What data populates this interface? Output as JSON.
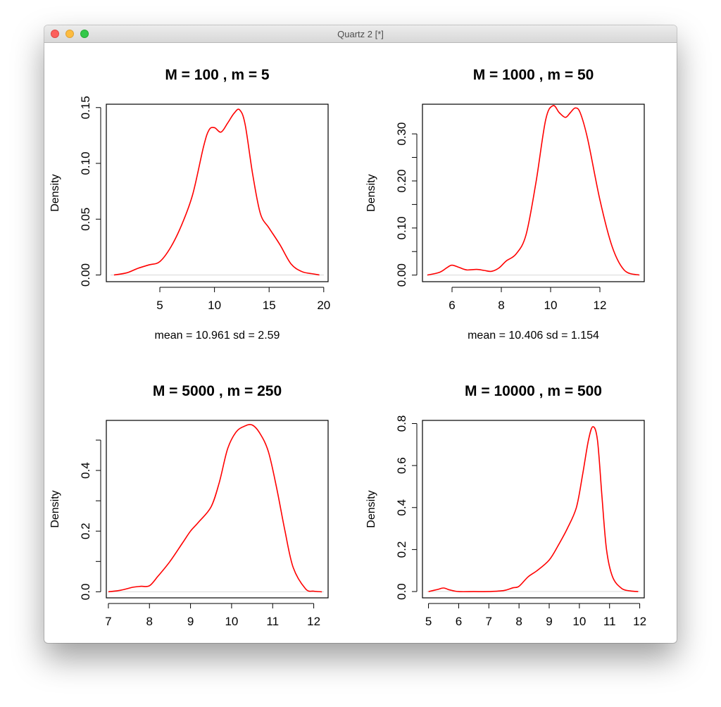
{
  "window": {
    "title": "Quartz 2 [*]"
  },
  "colors": {
    "curve": "#ff0000",
    "axis": "#000000",
    "zero_line": "#d8d8d8"
  },
  "chart_data": [
    {
      "type": "line",
      "title": "M =  100 , m =  5",
      "xlabel": "mean =  10.961 sd =  2.59",
      "ylabel": "Density",
      "xlim": [
        0.1,
        20.4
      ],
      "ylim": [
        -0.006,
        0.153
      ],
      "xticks": [
        5,
        10,
        15,
        20
      ],
      "xtick_labels": [
        "5",
        "10",
        "15",
        "20"
      ],
      "yticks": [
        0.0,
        0.05,
        0.1,
        0.15
      ],
      "ytick_labels": [
        "0.00",
        "0.05",
        "0.10",
        "0.15"
      ],
      "series": [
        {
          "name": "density",
          "x": [
            0.8,
            2.0,
            3.0,
            4.0,
            5.0,
            6.0,
            7.0,
            8.0,
            9.0,
            9.5,
            10.0,
            10.6,
            11.2,
            11.8,
            12.3,
            12.8,
            13.5,
            14.2,
            15.0,
            16.0,
            17.0,
            18.0,
            19.0,
            19.6
          ],
          "y": [
            0.0,
            0.002,
            0.006,
            0.009,
            0.012,
            0.025,
            0.045,
            0.072,
            0.115,
            0.13,
            0.132,
            0.128,
            0.136,
            0.145,
            0.148,
            0.135,
            0.09,
            0.055,
            0.042,
            0.027,
            0.01,
            0.003,
            0.001,
            0.0
          ]
        }
      ]
    },
    {
      "type": "line",
      "title": "M =  1000 , m =  50",
      "xlabel": "mean =  10.406 sd =  1.154",
      "ylabel": "Density",
      "xlim": [
        4.8,
        13.8
      ],
      "ylim": [
        -0.014,
        0.363
      ],
      "xticks": [
        6,
        8,
        10,
        12
      ],
      "xtick_labels": [
        "6",
        "8",
        "10",
        "12"
      ],
      "yticks": [
        0.0,
        0.05,
        0.1,
        0.15,
        0.2,
        0.25,
        0.3
      ],
      "ytick_labels": [
        "0.00",
        "",
        "0.10",
        "",
        "0.20",
        "",
        "0.30"
      ],
      "series": [
        {
          "name": "density",
          "x": [
            5.0,
            5.5,
            5.8,
            6.0,
            6.3,
            6.6,
            7.0,
            7.3,
            7.6,
            7.9,
            8.2,
            8.6,
            9.0,
            9.4,
            9.8,
            10.1,
            10.35,
            10.6,
            10.8,
            11.0,
            11.2,
            11.5,
            12.0,
            12.5,
            13.0,
            13.6
          ],
          "y": [
            0.0,
            0.006,
            0.016,
            0.021,
            0.016,
            0.011,
            0.012,
            0.01,
            0.008,
            0.015,
            0.03,
            0.045,
            0.085,
            0.195,
            0.33,
            0.36,
            0.345,
            0.335,
            0.345,
            0.355,
            0.345,
            0.29,
            0.16,
            0.06,
            0.01,
            0.0
          ]
        }
      ]
    },
    {
      "type": "line",
      "title": "M =  5000 , m =  250",
      "xlabel": "",
      "ylabel": "Density",
      "xlim": [
        6.95,
        12.35
      ],
      "ylim": [
        -0.02,
        0.565
      ],
      "xticks": [
        7,
        8,
        9,
        10,
        11,
        12
      ],
      "xtick_labels": [
        "7",
        "8",
        "9",
        "10",
        "11",
        "12"
      ],
      "yticks": [
        0.0,
        0.1,
        0.2,
        0.3,
        0.4,
        0.5
      ],
      "ytick_labels": [
        "0.0",
        "",
        "0.2",
        "",
        "0.4",
        ""
      ],
      "series": [
        {
          "name": "density",
          "x": [
            7.0,
            7.3,
            7.6,
            7.8,
            8.0,
            8.2,
            8.5,
            8.8,
            9.0,
            9.2,
            9.5,
            9.7,
            9.9,
            10.1,
            10.3,
            10.5,
            10.7,
            10.9,
            11.1,
            11.3,
            11.5,
            11.8,
            12.0,
            12.2
          ],
          "y": [
            0.0,
            0.005,
            0.015,
            0.018,
            0.02,
            0.05,
            0.1,
            0.16,
            0.2,
            0.23,
            0.28,
            0.36,
            0.47,
            0.525,
            0.545,
            0.55,
            0.52,
            0.46,
            0.34,
            0.2,
            0.08,
            0.01,
            0.002,
            0.0
          ]
        }
      ]
    },
    {
      "type": "line",
      "title": "M =  10000 , m =  500",
      "xlabel": "",
      "ylabel": "Density",
      "xlim": [
        4.8,
        12.15
      ],
      "ylim": [
        -0.03,
        0.815
      ],
      "xticks": [
        5,
        6,
        7,
        8,
        9,
        10,
        11,
        12
      ],
      "xtick_labels": [
        "5",
        "6",
        "7",
        "8",
        "9",
        "10",
        "11",
        "12"
      ],
      "yticks": [
        0.0,
        0.2,
        0.4,
        0.6,
        0.8
      ],
      "ytick_labels": [
        "0.0",
        "0.2",
        "0.4",
        "0.6",
        "0.8"
      ],
      "series": [
        {
          "name": "density",
          "x": [
            5.0,
            5.3,
            5.5,
            5.7,
            6.0,
            6.5,
            7.0,
            7.5,
            7.8,
            8.0,
            8.3,
            8.6,
            9.0,
            9.3,
            9.6,
            9.9,
            10.1,
            10.3,
            10.45,
            10.6,
            10.75,
            10.9,
            11.1,
            11.4,
            11.7,
            11.95
          ],
          "y": [
            0.0,
            0.01,
            0.017,
            0.008,
            0.0,
            0.0,
            0.0,
            0.005,
            0.018,
            0.025,
            0.07,
            0.1,
            0.15,
            0.22,
            0.3,
            0.4,
            0.55,
            0.72,
            0.785,
            0.72,
            0.45,
            0.2,
            0.07,
            0.015,
            0.003,
            0.0
          ]
        }
      ]
    }
  ]
}
